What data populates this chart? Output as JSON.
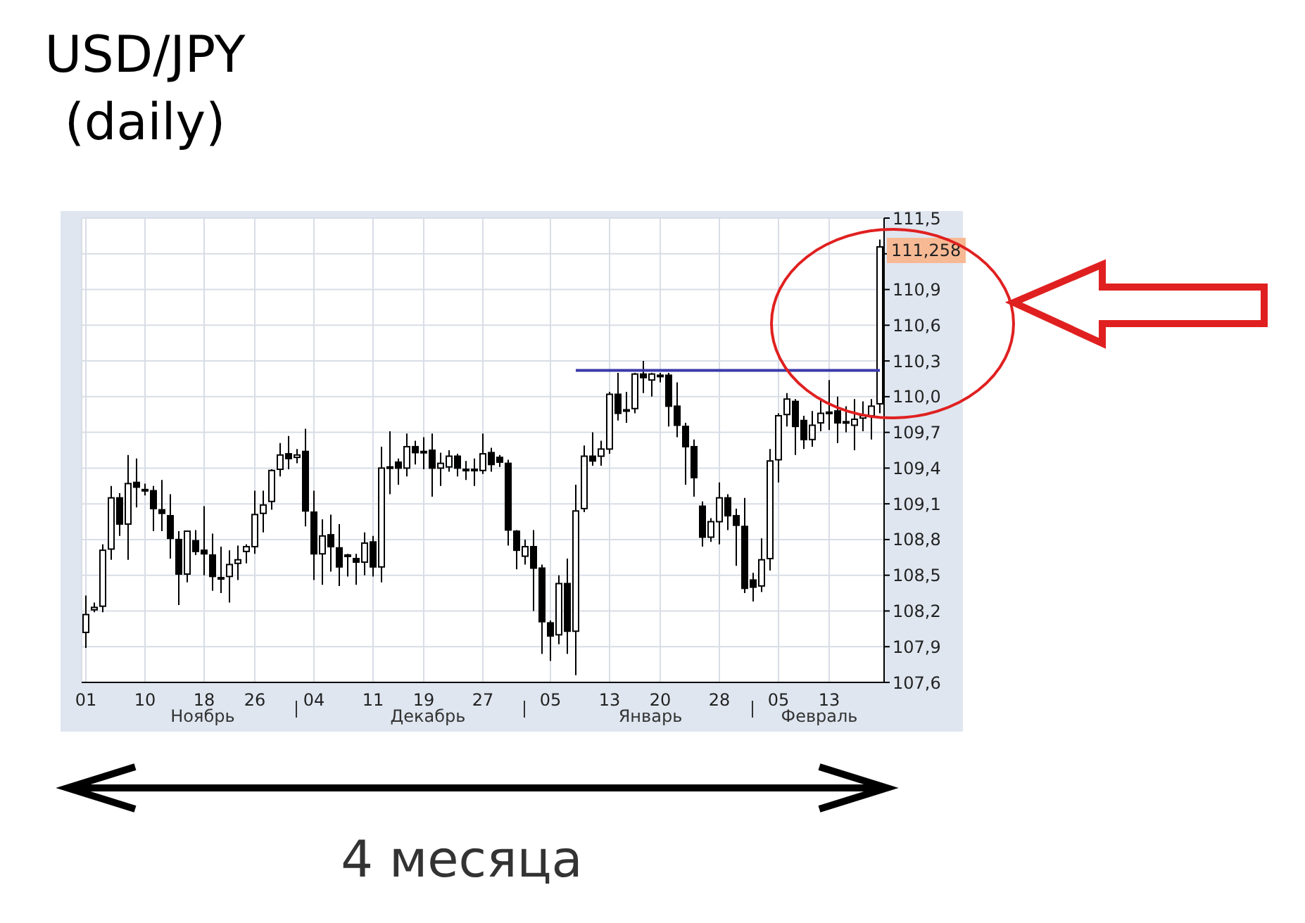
{
  "chart_data": {
    "type": "candlestick",
    "title": "USD/JPY (daily)",
    "categories": [
      "01",
      null,
      null,
      null,
      null,
      null,
      null,
      "10",
      null,
      null,
      null,
      null,
      null,
      null,
      "18",
      null,
      null,
      null,
      null,
      null,
      "26",
      null,
      null,
      null,
      null,
      null,
      null,
      "04",
      null,
      null,
      null,
      null,
      null,
      null,
      "11",
      null,
      null,
      null,
      null,
      null,
      "19",
      null,
      null,
      null,
      null,
      null,
      null,
      "27",
      null,
      null,
      null,
      null,
      null,
      null,
      null,
      "05",
      null,
      null,
      null,
      null,
      null,
      null,
      "13",
      null,
      null,
      null,
      null,
      null,
      "20",
      null,
      null,
      null,
      null,
      null,
      null,
      "28",
      null,
      null,
      null,
      null,
      null,
      null,
      "05",
      null,
      null,
      null,
      null,
      null,
      "13",
      null,
      null,
      null,
      null,
      null,
      null
    ],
    "series": [
      {
        "color": "#000000",
        "ohlc": [
          [
            108.02,
            108.33,
            107.89,
            108.17
          ],
          [
            108.21,
            108.27,
            108.19,
            108.23
          ],
          [
            108.24,
            108.76,
            108.19,
            108.71
          ],
          [
            108.72,
            109.25,
            108.63,
            109.15
          ],
          [
            109.15,
            109.19,
            108.83,
            108.93
          ],
          [
            108.93,
            109.51,
            108.63,
            109.27
          ],
          [
            109.28,
            109.48,
            109.07,
            109.24
          ],
          [
            109.22,
            109.27,
            109.17,
            109.21
          ],
          [
            109.21,
            109.25,
            108.87,
            109.06
          ],
          [
            109.05,
            109.3,
            108.87,
            109.02
          ],
          [
            109.0,
            109.18,
            108.64,
            108.81
          ],
          [
            108.8,
            108.87,
            108.25,
            108.51
          ],
          [
            108.51,
            108.87,
            108.44,
            108.87
          ],
          [
            108.79,
            108.88,
            108.67,
            108.7
          ],
          [
            108.71,
            109.08,
            108.5,
            108.68
          ],
          [
            108.67,
            108.85,
            108.37,
            108.49
          ],
          [
            108.48,
            108.74,
            108.35,
            108.47
          ],
          [
            108.49,
            108.71,
            108.27,
            108.59
          ],
          [
            108.6,
            108.75,
            108.46,
            108.63
          ],
          [
            108.7,
            108.76,
            108.6,
            108.74
          ],
          [
            108.74,
            109.21,
            108.68,
            109.01
          ],
          [
            109.02,
            109.21,
            108.86,
            109.09
          ],
          [
            109.12,
            109.39,
            109.05,
            109.38
          ],
          [
            109.39,
            109.61,
            109.33,
            109.51
          ],
          [
            109.52,
            109.67,
            109.39,
            109.48
          ],
          [
            109.49,
            109.56,
            109.44,
            109.51
          ],
          [
            109.54,
            109.73,
            108.91,
            109.04
          ],
          [
            109.03,
            109.21,
            108.46,
            108.68
          ],
          [
            108.68,
            108.97,
            108.42,
            108.83
          ],
          [
            108.84,
            109.01,
            108.53,
            108.74
          ],
          [
            108.73,
            108.93,
            108.41,
            108.57
          ],
          [
            108.67,
            108.68,
            108.49,
            108.66
          ],
          [
            108.64,
            108.68,
            108.42,
            108.61
          ],
          [
            108.61,
            108.86,
            108.5,
            108.77
          ],
          [
            108.78,
            108.83,
            108.49,
            108.57
          ],
          [
            108.57,
            109.58,
            108.44,
            109.4
          ],
          [
            109.4,
            109.71,
            109.18,
            109.41
          ],
          [
            109.45,
            109.48,
            109.26,
            109.4
          ],
          [
            109.4,
            109.69,
            109.33,
            109.58
          ],
          [
            109.58,
            109.63,
            109.43,
            109.53
          ],
          [
            109.54,
            109.66,
            109.39,
            109.53
          ],
          [
            109.55,
            109.69,
            109.16,
            109.4
          ],
          [
            109.4,
            109.53,
            109.25,
            109.44
          ],
          [
            109.41,
            109.55,
            109.37,
            109.5
          ],
          [
            109.5,
            109.52,
            109.33,
            109.4
          ],
          [
            109.39,
            109.46,
            109.3,
            109.38
          ],
          [
            109.38,
            109.48,
            109.25,
            109.39
          ],
          [
            109.38,
            109.69,
            109.35,
            109.52
          ],
          [
            109.53,
            109.57,
            109.37,
            109.43
          ],
          [
            109.49,
            109.51,
            109.41,
            109.45
          ],
          [
            109.44,
            109.47,
            108.75,
            108.88
          ],
          [
            108.87,
            108.88,
            108.55,
            108.71
          ],
          [
            108.66,
            108.8,
            108.59,
            108.74
          ],
          [
            108.74,
            108.88,
            108.2,
            108.56
          ],
          [
            108.56,
            108.59,
            107.84,
            108.11
          ],
          [
            108.1,
            108.12,
            107.78,
            107.99
          ],
          [
            108.0,
            108.5,
            107.92,
            108.43
          ],
          [
            108.43,
            108.64,
            107.84,
            108.03
          ],
          [
            108.03,
            109.26,
            107.66,
            109.04
          ],
          [
            109.06,
            109.59,
            109.03,
            109.5
          ],
          [
            109.5,
            109.7,
            109.42,
            109.46
          ],
          [
            109.5,
            109.63,
            109.42,
            109.56
          ],
          [
            109.56,
            110.04,
            109.52,
            110.02
          ],
          [
            110.02,
            110.2,
            109.8,
            109.86
          ],
          [
            109.89,
            110.04,
            109.78,
            109.88
          ],
          [
            109.9,
            110.2,
            109.86,
            110.19
          ],
          [
            110.19,
            110.3,
            110.03,
            110.16
          ],
          [
            110.14,
            110.2,
            110.0,
            110.19
          ],
          [
            110.18,
            110.2,
            110.12,
            110.17
          ],
          [
            110.18,
            110.2,
            109.75,
            109.92
          ],
          [
            109.92,
            110.12,
            109.66,
            109.76
          ],
          [
            109.75,
            109.78,
            109.26,
            109.58
          ],
          [
            109.58,
            109.64,
            109.16,
            109.32
          ],
          [
            109.08,
            109.12,
            108.74,
            108.82
          ],
          [
            108.82,
            108.98,
            108.78,
            108.95
          ],
          [
            108.95,
            109.28,
            108.76,
            109.15
          ],
          [
            109.15,
            109.18,
            108.88,
            109.0
          ],
          [
            109.0,
            109.06,
            108.58,
            108.92
          ],
          [
            108.91,
            109.15,
            108.35,
            108.39
          ],
          [
            108.46,
            108.52,
            108.28,
            108.4
          ],
          [
            108.41,
            108.81,
            108.36,
            108.63
          ],
          [
            108.64,
            109.56,
            108.54,
            109.46
          ],
          [
            109.47,
            109.86,
            109.28,
            109.84
          ],
          [
            109.85,
            110.03,
            109.75,
            109.98
          ],
          [
            109.96,
            109.98,
            109.51,
            109.75
          ],
          [
            109.8,
            109.84,
            109.56,
            109.64
          ],
          [
            109.64,
            109.88,
            109.58,
            109.76
          ],
          [
            109.78,
            109.98,
            109.71,
            109.86
          ],
          [
            109.86,
            110.14,
            109.72,
            109.87
          ],
          [
            109.88,
            110.0,
            109.61,
            109.78
          ],
          [
            109.79,
            109.92,
            109.7,
            109.78
          ],
          [
            109.76,
            109.98,
            109.55,
            109.81
          ],
          [
            109.82,
            109.96,
            109.71,
            109.84
          ],
          [
            109.84,
            109.98,
            109.64,
            109.92
          ],
          [
            109.94,
            111.32,
            109.86,
            111.258
          ]
        ]
      },
      {
        "type": "line",
        "color": "#3a3aaa",
        "values": [
          null,
          null,
          null,
          null,
          null,
          null,
          null,
          null,
          null,
          null,
          null,
          null,
          null,
          null,
          null,
          null,
          null,
          null,
          null,
          null,
          null,
          null,
          null,
          null,
          null,
          null,
          null,
          null,
          null,
          null,
          null,
          null,
          null,
          null,
          null,
          null,
          null,
          null,
          null,
          null,
          null,
          null,
          null,
          null,
          null,
          null,
          null,
          null,
          null,
          null,
          null,
          null,
          null,
          null,
          null,
          null,
          null,
          null,
          110.22,
          110.22,
          110.22,
          110.22,
          110.22,
          110.22,
          110.22,
          110.22,
          110.22,
          110.22,
          110.22,
          110.22,
          110.22,
          110.22,
          110.22,
          110.22,
          110.22,
          110.22,
          110.22,
          110.22,
          110.22,
          110.22,
          110.22,
          110.22,
          110.22,
          110.22,
          110.22,
          110.22,
          110.22,
          110.22,
          110.22,
          110.22,
          110.22,
          110.22,
          110.22,
          110.22,
          110.22
        ]
      }
    ],
    "ylim": [
      107.6,
      111.5
    ],
    "yticks": [
      {
        "value": 107.6,
        "label": "107,6"
      },
      {
        "value": 107.9,
        "label": "107,9"
      },
      {
        "value": 108.2,
        "label": "108,2"
      },
      {
        "value": 108.5,
        "label": "108,5"
      },
      {
        "value": 108.8,
        "label": "108,8"
      },
      {
        "value": 109.1,
        "label": "109,1"
      },
      {
        "value": 109.4,
        "label": "109,4"
      },
      {
        "value": 109.7,
        "label": "109,7"
      },
      {
        "value": 110.0,
        "label": "110,0"
      },
      {
        "value": 110.3,
        "label": "110,3"
      },
      {
        "value": 110.6,
        "label": "110,6"
      },
      {
        "value": 110.9,
        "label": "110,9"
      },
      {
        "value": 111.2,
        "label": null
      },
      {
        "value": 111.5,
        "label": "111,5"
      }
    ],
    "grid": true,
    "annotations": [
      "Ноябрь",
      "Декабрь",
      "Январь",
      "Февраль",
      "4 месяца",
      "111,258"
    ]
  }
}
